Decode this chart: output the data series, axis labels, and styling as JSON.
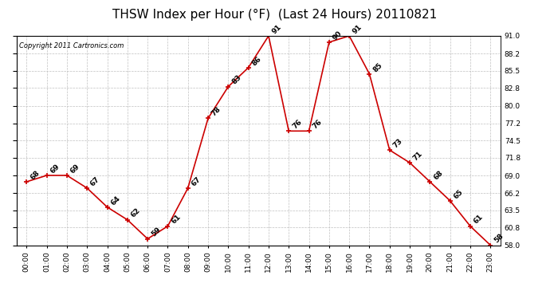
{
  "title": "THSW Index per Hour (°F)  (Last 24 Hours) 20110821",
  "copyright": "Copyright 2011 Cartronics.com",
  "hours": [
    "00:00",
    "01:00",
    "02:00",
    "03:00",
    "04:00",
    "05:00",
    "06:00",
    "07:00",
    "08:00",
    "09:00",
    "10:00",
    "11:00",
    "12:00",
    "13:00",
    "14:00",
    "15:00",
    "16:00",
    "17:00",
    "18:00",
    "19:00",
    "20:00",
    "21:00",
    "22:00",
    "23:00"
  ],
  "values": [
    68,
    69,
    69,
    67,
    64,
    62,
    59,
    61,
    67,
    78,
    83,
    86,
    91,
    76,
    76,
    90,
    91,
    85,
    73,
    71,
    68,
    65,
    61,
    58
  ],
  "line_color": "#cc0000",
  "marker_color": "#cc0000",
  "bg_color": "#ffffff",
  "grid_color": "#c0c0c0",
  "ylim_min": 58.0,
  "ylim_max": 91.0,
  "yticks": [
    58.0,
    60.8,
    63.5,
    66.2,
    69.0,
    71.8,
    74.5,
    77.2,
    80.0,
    82.8,
    85.5,
    88.2,
    91.0
  ],
  "title_fontsize": 11,
  "label_fontsize": 6.5,
  "copyright_fontsize": 6,
  "tick_fontsize": 6.5
}
